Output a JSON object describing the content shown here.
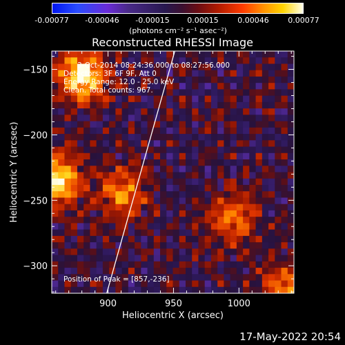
{
  "colorbar": {
    "ticks": [
      "-0.00077",
      "-0.00046",
      "-0.00015",
      "0.00015",
      "0.00046",
      "0.00077"
    ],
    "unit_label": "(photons cm⁻² s⁻¹ asec⁻²)"
  },
  "chart_data": {
    "type": "heatmap",
    "title": "Reconstructed RHESSI Image",
    "xlabel": "Heliocentric X (arcsec)",
    "ylabel": "Heliocentric Y (arcsec)",
    "xlim": [
      857,
      1042
    ],
    "ylim": [
      -321,
      -136
    ],
    "xticks": [
      900,
      950,
      1000
    ],
    "yticks": [
      -150,
      -200,
      -250,
      -300
    ],
    "colorbar_range": [
      -0.00077,
      0.00077
    ],
    "annotations": [
      "3-Oct-2014 08:24:36.000 to 08:27:56.000",
      "Detectors: 3F 6F 9F, Att 0",
      "Energy Range: 12.0 - 25.0 keV",
      "Clean. Total counts: 967.",
      "Position of Peak = [857,-236]"
    ],
    "peak_position": [
      857,
      -236
    ],
    "limb_line": {
      "x": [
        899,
        951
      ],
      "y": [
        -321,
        -136
      ]
    },
    "bright_sources": [
      {
        "x": 880,
        "y": -155,
        "level": 0.00077
      },
      {
        "x": 860,
        "y": -235,
        "level": 0.00077
      },
      {
        "x": 910,
        "y": -245,
        "level": 0.00046
      },
      {
        "x": 995,
        "y": -265,
        "level": 0.00046
      },
      {
        "x": 1035,
        "y": -318,
        "level": 0.00046
      }
    ]
  },
  "footer": {
    "date": "17-May-2022 20:54"
  }
}
